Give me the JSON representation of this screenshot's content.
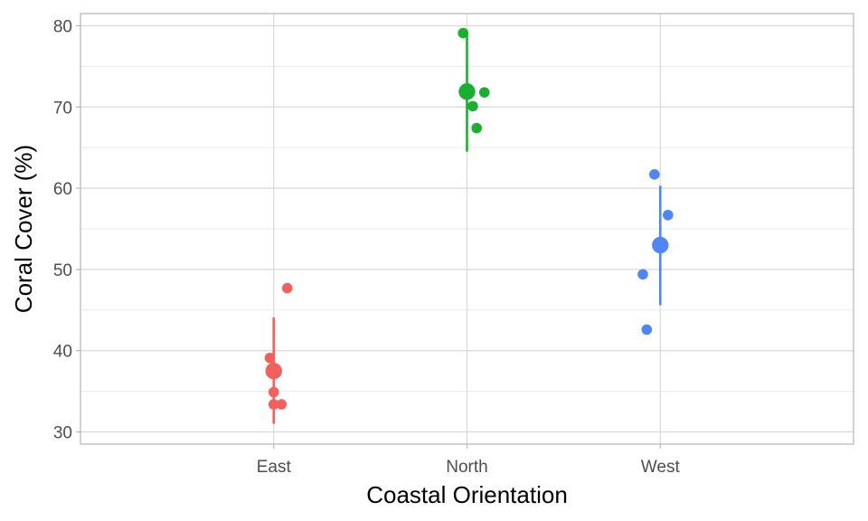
{
  "chart_data": {
    "type": "scatter",
    "title": "",
    "xlabel": "Coastal Orientation",
    "ylabel": "Coral Cover (%)",
    "ylim": [
      28.5,
      81.5
    ],
    "y_ticks": [
      30,
      40,
      50,
      60,
      70,
      80
    ],
    "y_tick_labels": [
      "30",
      "40",
      "50",
      "60",
      "70",
      "80"
    ],
    "y_minor_ticks": [
      35,
      45,
      55,
      65,
      75
    ],
    "categories": [
      "East",
      "North",
      "West"
    ],
    "grid": true,
    "legend": "none",
    "series": [
      {
        "category": "East",
        "color": "#F0605D",
        "points": [
          {
            "offset": -0.02,
            "y": 39.1
          },
          {
            "offset": 0.07,
            "y": 47.7
          },
          {
            "offset": 0.0,
            "y": 34.9
          },
          {
            "offset": 0.0,
            "y": 33.4
          },
          {
            "offset": 0.04,
            "y": 33.4
          }
        ],
        "summary": {
          "mean": 37.5,
          "lower": 31.0,
          "upper": 44.1
        }
      },
      {
        "category": "North",
        "color": "#1AAF2F",
        "points": [
          {
            "offset": -0.02,
            "y": 79.1
          },
          {
            "offset": 0.09,
            "y": 71.8
          },
          {
            "offset": 0.03,
            "y": 70.1
          },
          {
            "offset": 0.05,
            "y": 67.4
          }
        ],
        "summary": {
          "mean": 71.9,
          "lower": 64.5,
          "upper": 79.0
        }
      },
      {
        "category": "West",
        "color": "#4F86F7",
        "points": [
          {
            "offset": -0.03,
            "y": 61.7
          },
          {
            "offset": 0.04,
            "y": 56.7
          },
          {
            "offset": -0.09,
            "y": 49.4
          },
          {
            "offset": -0.07,
            "y": 42.6
          }
        ],
        "summary": {
          "mean": 53.0,
          "lower": 45.6,
          "upper": 60.3
        }
      }
    ]
  }
}
